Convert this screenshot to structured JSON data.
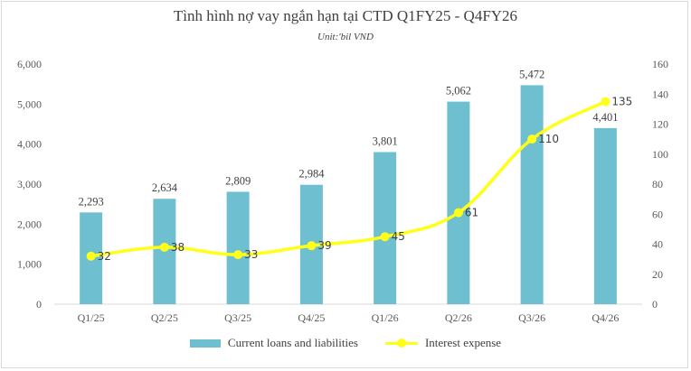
{
  "chart_data": {
    "type": "bar",
    "title": "Tình hình nợ vay ngắn hạn tại CTD Q1FY25 - Q4FY26",
    "subtitle": "Unit:'bil VND",
    "categories": [
      "Q1/25",
      "Q2/25",
      "Q3/25",
      "Q4/25",
      "Q1/26",
      "Q2/26",
      "Q3/26",
      "Q4/26"
    ],
    "series": [
      {
        "name": "Current loans and liabilities",
        "type": "bar",
        "axis": "left",
        "color": "#6ebfd0",
        "values": [
          2293,
          2634,
          2809,
          2984,
          3801,
          5062,
          5472,
          4401
        ],
        "labels": [
          "2,293",
          "2,634",
          "2,809",
          "2,984",
          "3,801",
          "5,062",
          "5,472",
          "4,401"
        ]
      },
      {
        "name": "Interest expense",
        "type": "line",
        "axis": "right",
        "color": "#ffff1a",
        "values": [
          32,
          38,
          33,
          39,
          45,
          61,
          110,
          135
        ],
        "labels": [
          "32",
          "38",
          "33",
          "39",
          "45",
          "61",
          "110",
          "135"
        ]
      }
    ],
    "y_left": {
      "lim": [
        0,
        6000
      ],
      "ticks": [
        0,
        1000,
        2000,
        3000,
        4000,
        5000,
        6000
      ],
      "tick_labels": [
        "0",
        "1,000",
        "2,000",
        "3,000",
        "4,000",
        "5,000",
        "6,000"
      ]
    },
    "y_right": {
      "lim": [
        0,
        160
      ],
      "ticks": [
        0,
        20,
        40,
        60,
        80,
        100,
        120,
        140,
        160
      ],
      "tick_labels": [
        "0",
        "20",
        "40",
        "60",
        "80",
        "100",
        "120",
        "140",
        "160"
      ]
    },
    "grid": false,
    "legend_position": "bottom"
  }
}
